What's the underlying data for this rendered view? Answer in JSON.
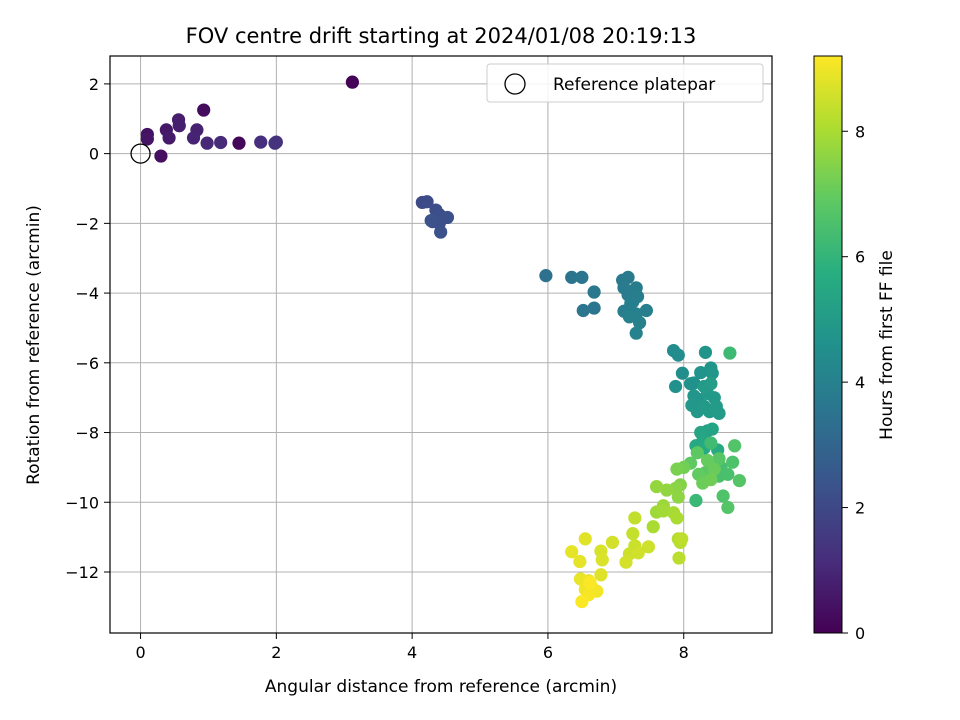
{
  "chart_data": {
    "type": "scatter",
    "title": "FOV centre drift starting at 2024/01/08 20:19:13",
    "xlabel": "Angular distance from reference (arcmin)",
    "ylabel": "Rotation from reference (arcmin)",
    "xlim": [
      -0.45,
      9.3
    ],
    "ylim": [
      -13.75,
      2.8
    ],
    "xticks": [
      0,
      2,
      4,
      6,
      8
    ],
    "yticks": [
      2,
      0,
      -2,
      -4,
      -6,
      -8,
      -10,
      -12
    ],
    "grid": true,
    "legend": {
      "location": "upper right",
      "entries": [
        "Reference platepar"
      ]
    },
    "reference_point": {
      "x": 0,
      "y": 0,
      "label": "Reference platepar"
    },
    "colorbar": {
      "label": "Hours from first FF file",
      "colormap": "viridis",
      "range": [
        0,
        9.2
      ],
      "ticks": [
        0,
        2,
        4,
        6,
        8
      ]
    },
    "points": [
      [
        3.12,
        2.05,
        0.05
      ],
      [
        1.45,
        0.3,
        0.15
      ],
      [
        0.93,
        1.25,
        0.25
      ],
      [
        0.3,
        -0.07,
        0.35
      ],
      [
        0.1,
        0.55,
        0.45
      ],
      [
        0.1,
        0.42,
        0.5
      ],
      [
        0.38,
        0.68,
        0.6
      ],
      [
        0.42,
        0.45,
        0.65
      ],
      [
        0.56,
        0.97,
        0.75
      ],
      [
        0.57,
        0.8,
        0.8
      ],
      [
        0.83,
        0.68,
        0.85
      ],
      [
        0.78,
        0.45,
        0.9
      ],
      [
        0.98,
        0.3,
        1.0
      ],
      [
        1.18,
        0.32,
        1.1
      ],
      [
        1.77,
        0.33,
        1.2
      ],
      [
        1.98,
        0.3,
        1.3
      ],
      [
        2.0,
        0.33,
        1.35
      ],
      [
        4.15,
        -1.4,
        2.05
      ],
      [
        4.22,
        -1.38,
        2.1
      ],
      [
        4.35,
        -1.62,
        2.15
      ],
      [
        4.4,
        -1.75,
        2.2
      ],
      [
        4.52,
        -1.83,
        2.25
      ],
      [
        4.3,
        -1.95,
        2.2
      ],
      [
        4.4,
        -2.0,
        2.25
      ],
      [
        4.42,
        -2.25,
        2.3
      ],
      [
        4.28,
        -1.92,
        2.3
      ],
      [
        5.97,
        -3.5,
        3.4
      ],
      [
        6.35,
        -3.55,
        3.5
      ],
      [
        6.5,
        -3.55,
        3.55
      ],
      [
        6.52,
        -4.5,
        3.6
      ],
      [
        6.68,
        -3.97,
        3.65
      ],
      [
        6.68,
        -4.43,
        3.6
      ],
      [
        7.1,
        -3.63,
        3.7
      ],
      [
        7.18,
        -3.55,
        3.75
      ],
      [
        7.12,
        -3.85,
        3.8
      ],
      [
        7.18,
        -4.05,
        3.8
      ],
      [
        7.3,
        -3.85,
        3.85
      ],
      [
        7.32,
        -4.1,
        3.9
      ],
      [
        7.25,
        -4.25,
        3.9
      ],
      [
        7.45,
        -4.5,
        3.95
      ],
      [
        7.12,
        -4.52,
        3.9
      ],
      [
        7.2,
        -4.45,
        3.95
      ],
      [
        7.3,
        -4.6,
        4.0
      ],
      [
        7.35,
        -4.85,
        4.0
      ],
      [
        7.3,
        -5.15,
        4.05
      ],
      [
        7.22,
        -4.3,
        3.95
      ],
      [
        7.2,
        -4.68,
        4.0
      ],
      [
        7.85,
        -5.65,
        4.4
      ],
      [
        7.92,
        -5.78,
        4.45
      ],
      [
        7.98,
        -6.3,
        4.5
      ],
      [
        7.88,
        -6.68,
        4.6
      ],
      [
        8.1,
        -6.6,
        4.6
      ],
      [
        8.15,
        -6.58,
        4.65
      ],
      [
        8.25,
        -6.28,
        4.7
      ],
      [
        8.32,
        -5.7,
        4.75
      ],
      [
        8.4,
        -6.15,
        4.75
      ],
      [
        8.42,
        -6.3,
        4.8
      ],
      [
        8.15,
        -6.95,
        4.8
      ],
      [
        8.22,
        -7.05,
        4.8
      ],
      [
        8.12,
        -7.22,
        4.85
      ],
      [
        8.2,
        -7.4,
        4.85
      ],
      [
        8.35,
        -6.88,
        4.9
      ],
      [
        8.45,
        -7.0,
        4.9
      ],
      [
        8.3,
        -7.25,
        4.95
      ],
      [
        8.38,
        -7.4,
        4.95
      ],
      [
        8.48,
        -7.25,
        5.0
      ],
      [
        8.52,
        -7.45,
        5.0
      ],
      [
        8.3,
        -6.68,
        5.0
      ],
      [
        8.4,
        -6.6,
        5.05
      ],
      [
        8.35,
        -7.95,
        5.2
      ],
      [
        8.42,
        -7.9,
        5.3
      ],
      [
        8.25,
        -8.0,
        5.35
      ],
      [
        8.28,
        -8.25,
        5.45
      ],
      [
        8.18,
        -8.38,
        5.5
      ],
      [
        8.3,
        -8.45,
        5.55
      ],
      [
        8.5,
        -8.5,
        5.6
      ],
      [
        8.68,
        -5.72,
        6.2
      ],
      [
        8.18,
        -9.95,
        6.15
      ],
      [
        8.4,
        -8.3,
        6.3
      ],
      [
        8.55,
        -9.0,
        6.4
      ],
      [
        8.52,
        -9.25,
        6.45
      ],
      [
        8.58,
        -9.82,
        6.6
      ],
      [
        8.65,
        -10.15,
        6.7
      ],
      [
        8.65,
        -9.2,
        6.5
      ],
      [
        8.72,
        -8.85,
        6.55
      ],
      [
        8.75,
        -8.38,
        6.65
      ],
      [
        8.82,
        -9.38,
        6.7
      ],
      [
        8.52,
        -8.75,
        6.75
      ],
      [
        8.32,
        -9.15,
        6.8
      ],
      [
        8.2,
        -8.58,
        6.85
      ],
      [
        8.1,
        -8.88,
        6.9
      ],
      [
        8.22,
        -9.2,
        6.95
      ],
      [
        8.35,
        -8.8,
        7.0
      ],
      [
        8.45,
        -9.05,
        7.05
      ],
      [
        8.28,
        -9.45,
        7.1
      ],
      [
        8.4,
        -9.35,
        7.15
      ],
      [
        8.0,
        -9.0,
        7.2
      ],
      [
        7.9,
        -9.05,
        7.3
      ],
      [
        7.95,
        -9.5,
        7.45
      ],
      [
        7.88,
        -9.6,
        7.55
      ],
      [
        7.92,
        -9.85,
        7.6
      ],
      [
        7.75,
        -9.65,
        7.65
      ],
      [
        7.6,
        -9.55,
        7.7
      ],
      [
        7.7,
        -10.1,
        7.8
      ],
      [
        7.6,
        -10.28,
        7.85
      ],
      [
        7.7,
        -10.25,
        7.9
      ],
      [
        7.85,
        -10.3,
        7.95
      ],
      [
        7.9,
        -10.45,
        8.0
      ],
      [
        7.55,
        -10.7,
        8.0
      ],
      [
        7.92,
        -11.05,
        8.15
      ],
      [
        7.95,
        -11.15,
        8.2
      ],
      [
        7.93,
        -11.6,
        8.25
      ],
      [
        7.97,
        -11.05,
        8.3
      ],
      [
        7.28,
        -10.45,
        8.35
      ],
      [
        7.25,
        -10.9,
        8.4
      ],
      [
        7.28,
        -11.25,
        8.45
      ],
      [
        7.2,
        -11.48,
        8.5
      ],
      [
        7.48,
        -11.28,
        8.5
      ],
      [
        7.33,
        -11.45,
        8.55
      ],
      [
        7.15,
        -11.72,
        8.6
      ],
      [
        6.95,
        -11.15,
        8.6
      ],
      [
        6.78,
        -11.4,
        8.65
      ],
      [
        6.8,
        -11.65,
        8.7
      ],
      [
        6.78,
        -12.08,
        8.75
      ],
      [
        6.55,
        -11.05,
        8.8
      ],
      [
        6.35,
        -11.42,
        8.85
      ],
      [
        6.47,
        -11.7,
        8.85
      ],
      [
        6.48,
        -12.2,
        8.9
      ],
      [
        6.6,
        -12.25,
        8.95
      ],
      [
        6.55,
        -12.5,
        9.0
      ],
      [
        6.65,
        -12.45,
        9.05
      ],
      [
        6.72,
        -12.55,
        9.05
      ],
      [
        6.6,
        -12.65,
        9.1
      ],
      [
        6.5,
        -12.85,
        9.15
      ],
      [
        6.62,
        -12.3,
        9.15
      ]
    ]
  }
}
